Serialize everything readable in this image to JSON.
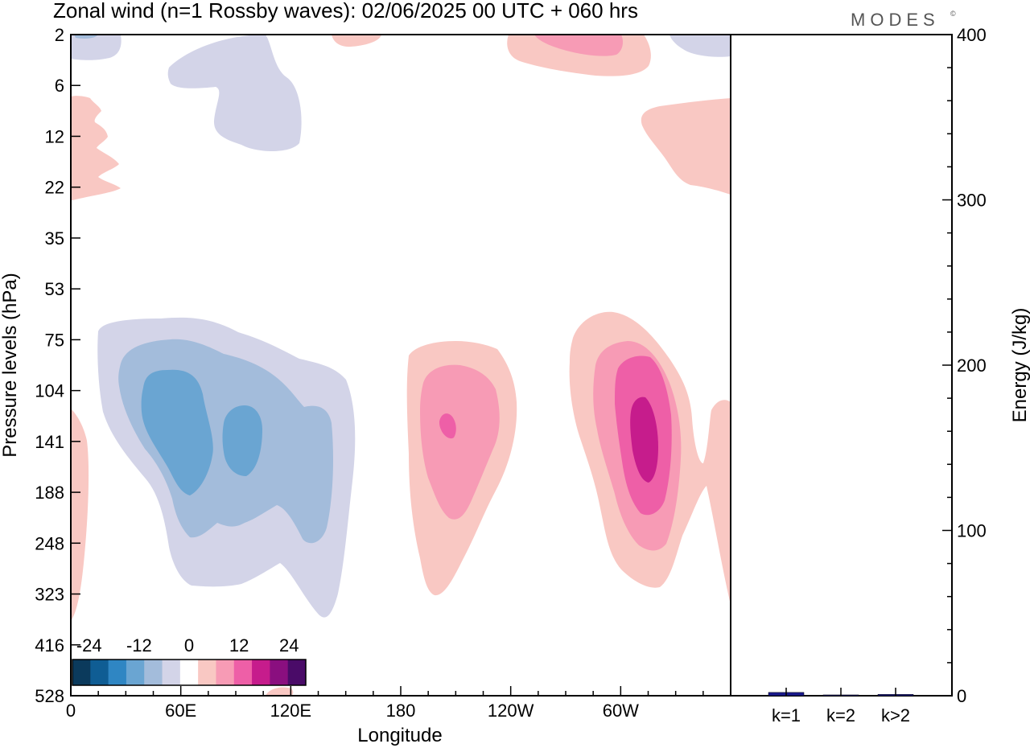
{
  "chart_data": [
    {
      "type": "heatmap",
      "title": "Zonal wind (n=1 Rossby waves):  02/06/2025  00 UTC  + 060 hrs",
      "brand": "MODES",
      "brand_mark": "©",
      "xlabel": "Longitude",
      "ylabel": "Pressure levels (hPa)",
      "x_ticks": [
        "0",
        "60E",
        "120E",
        "180",
        "120W",
        "60W"
      ],
      "x_tick_values_deg": [
        0,
        60,
        120,
        180,
        240,
        300
      ],
      "xlim_deg": [
        0,
        360
      ],
      "y_ticks": [
        "2",
        "6",
        "12",
        "22",
        "35",
        "53",
        "75",
        "104",
        "141",
        "188",
        "248",
        "323",
        "416",
        "528"
      ],
      "y_axis": "pressure levels top to bottom (2 hPa at top, 528 hPa at bottom)",
      "colorbar": {
        "tick_labels": [
          "-24",
          "-12",
          "0",
          "12",
          "24"
        ],
        "tick_values": [
          -24,
          -12,
          0,
          12,
          24
        ],
        "levels": [
          -28,
          -24,
          -20,
          -16,
          -12,
          -8,
          -4,
          4,
          8,
          12,
          16,
          20,
          24,
          28
        ],
        "colors": [
          "#0b3a5c",
          "#0f5d94",
          "#2f86c3",
          "#6aa5d2",
          "#a3bcdb",
          "#d3d4e8",
          "#ffffff",
          "#f9c8c3",
          "#f79bb5",
          "#ee5fa7",
          "#c61c8c",
          "#8a0f7f",
          "#4a0b68"
        ]
      },
      "features": [
        {
          "kind": "negative anomaly",
          "center_lon_deg": 40,
          "center_level_hPa": 141,
          "min_value": -20
        },
        {
          "kind": "negative anomaly",
          "center_lon_deg": 85,
          "center_level_hPa": 141,
          "min_value": -20
        },
        {
          "kind": "positive anomaly",
          "center_lon_deg": 196,
          "center_level_hPa": 130,
          "max_value": 16
        },
        {
          "kind": "positive anomaly",
          "center_lon_deg": 297,
          "center_level_hPa": 141,
          "max_value": 20
        },
        {
          "kind": "negative anomaly",
          "center_lon_deg": 80,
          "center_level_hPa": 8,
          "min_value": -8
        },
        {
          "kind": "positive anomaly",
          "center_lon_deg": 290,
          "center_level_hPa": 2,
          "max_value": 12
        },
        {
          "kind": "positive anomaly",
          "center_lon_deg": 340,
          "center_level_hPa": 16,
          "max_value": 8
        }
      ]
    },
    {
      "type": "bar",
      "ylabel": "Energy (J/kg)",
      "categories": [
        "k=1",
        "k=2",
        "k>2"
      ],
      "values": [
        2,
        0.5,
        0.8
      ],
      "ylim": [
        0,
        400
      ],
      "y_ticks": [
        "0",
        "100",
        "200",
        "300",
        "400"
      ],
      "bar_color": "#1a1a8c"
    }
  ]
}
